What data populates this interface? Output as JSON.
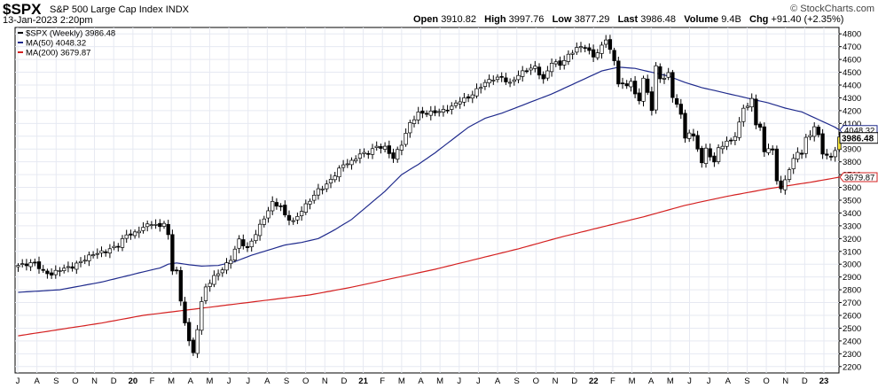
{
  "header": {
    "symbol": "$SPX",
    "name": "S&P 500 Large Cap Index",
    "exchange": "INDX",
    "date": "13-Jan-2023 2:20pm",
    "brand": "© StockCharts.com",
    "ohlc": {
      "open_label": "Open",
      "open": "3910.82",
      "high_label": "High",
      "high": "3997.76",
      "low_label": "Low",
      "low": "3877.29",
      "last_label": "Last",
      "last": "3986.48",
      "volume_label": "Volume",
      "volume": "9.4B",
      "chg_label": "Chg",
      "chg": "+91.40 (+2.35%)"
    }
  },
  "legend": [
    {
      "label": "$SPX (Weekly) 3986.48",
      "color": "#000000"
    },
    {
      "label": "MA(50) 4048.32",
      "color": "#1f2a8c"
    },
    {
      "label": "MA(200) 3679.87",
      "color": "#d42020"
    }
  ],
  "chart_data": {
    "type": "candlestick",
    "title": "$SPX S&P 500 Large Cap Index INDX",
    "timeframe": "Weekly",
    "ylim": [
      2150,
      4850
    ],
    "y_ticks": [
      2200,
      2300,
      2400,
      2500,
      2600,
      2700,
      2800,
      2900,
      3000,
      3100,
      3200,
      3300,
      3400,
      3500,
      3600,
      3700,
      3800,
      3900,
      4000,
      4100,
      4200,
      4300,
      4400,
      4500,
      4600,
      4700,
      4800
    ],
    "x_labels": [
      "J",
      "A",
      "S",
      "O",
      "N",
      "D",
      "20",
      "F",
      "M",
      "A",
      "M",
      "J",
      "J",
      "A",
      "S",
      "O",
      "N",
      "D",
      "21",
      "F",
      "M",
      "A",
      "M",
      "J",
      "J",
      "A",
      "S",
      "O",
      "N",
      "D",
      "22",
      "F",
      "M",
      "A",
      "M",
      "J",
      "J",
      "A",
      "S",
      "O",
      "N",
      "D",
      "23"
    ],
    "x_bold": [
      "20",
      "21",
      "22",
      "23"
    ],
    "price_labels": [
      {
        "value": 4048.32,
        "text": "4048.32",
        "style": "ma50"
      },
      {
        "value": 3986.48,
        "text": "3986.48",
        "style": "last"
      },
      {
        "value": 3679.87,
        "text": "3679.87",
        "style": "ma200"
      }
    ],
    "close_anchors": [
      [
        0,
        2990
      ],
      [
        4,
        3010
      ],
      [
        6,
        2940
      ],
      [
        8,
        2920
      ],
      [
        10,
        2960
      ],
      [
        13,
        2980
      ],
      [
        15,
        3020
      ],
      [
        18,
        3080
      ],
      [
        21,
        3100
      ],
      [
        24,
        3150
      ],
      [
        26,
        3230
      ],
      [
        28,
        3240
      ],
      [
        30,
        3290
      ],
      [
        32,
        3320
      ],
      [
        34,
        3290
      ],
      [
        35,
        3330
      ],
      [
        36,
        3220
      ],
      [
        37,
        2950
      ],
      [
        38,
        2960
      ],
      [
        39,
        2700
      ],
      [
        40,
        2550
      ],
      [
        41,
        2400
      ],
      [
        42,
        2300
      ],
      [
        43,
        2500
      ],
      [
        44,
        2700
      ],
      [
        45,
        2820
      ],
      [
        47,
        2900
      ],
      [
        49,
        2960
      ],
      [
        51,
        3040
      ],
      [
        53,
        3190
      ],
      [
        55,
        3120
      ],
      [
        57,
        3240
      ],
      [
        59,
        3360
      ],
      [
        61,
        3480
      ],
      [
        63,
        3450
      ],
      [
        64,
        3380
      ],
      [
        66,
        3330
      ],
      [
        68,
        3420
      ],
      [
        70,
        3500
      ],
      [
        72,
        3580
      ],
      [
        74,
        3620
      ],
      [
        76,
        3700
      ],
      [
        78,
        3780
      ],
      [
        80,
        3800
      ],
      [
        82,
        3860
      ],
      [
        84,
        3870
      ],
      [
        86,
        3920
      ],
      [
        88,
        3910
      ],
      [
        90,
        3830
      ],
      [
        92,
        3940
      ],
      [
        94,
        4100
      ],
      [
        96,
        4180
      ],
      [
        98,
        4180
      ],
      [
        100,
        4190
      ],
      [
        102,
        4200
      ],
      [
        104,
        4230
      ],
      [
        106,
        4280
      ],
      [
        108,
        4300
      ],
      [
        110,
        4360
      ],
      [
        112,
        4420
      ],
      [
        114,
        4450
      ],
      [
        116,
        4460
      ],
      [
        118,
        4410
      ],
      [
        120,
        4480
      ],
      [
        122,
        4520
      ],
      [
        124,
        4540
      ],
      [
        126,
        4440
      ],
      [
        128,
        4580
      ],
      [
        130,
        4560
      ],
      [
        132,
        4630
      ],
      [
        134,
        4690
      ],
      [
        136,
        4700
      ],
      [
        138,
        4620
      ],
      [
        140,
        4700
      ],
      [
        141,
        4760
      ],
      [
        142,
        4680
      ],
      [
        143,
        4580
      ],
      [
        144,
        4420
      ],
      [
        146,
        4390
      ],
      [
        147,
        4440
      ],
      [
        148,
        4320
      ],
      [
        149,
        4280
      ],
      [
        150,
        4460
      ],
      [
        151,
        4330
      ],
      [
        152,
        4210
      ],
      [
        153,
        4550
      ],
      [
        154,
        4440
      ],
      [
        156,
        4490
      ],
      [
        157,
        4300
      ],
      [
        158,
        4260
      ],
      [
        159,
        4160
      ],
      [
        160,
        3990
      ],
      [
        161,
        4030
      ],
      [
        162,
        3990
      ],
      [
        163,
        3910
      ],
      [
        164,
        3790
      ],
      [
        165,
        3900
      ],
      [
        166,
        3850
      ],
      [
        167,
        3790
      ],
      [
        168,
        3910
      ],
      [
        170,
        3950
      ],
      [
        172,
        4000
      ],
      [
        173,
        4100
      ],
      [
        174,
        4230
      ],
      [
        175,
        4230
      ],
      [
        176,
        4290
      ],
      [
        177,
        4100
      ],
      [
        178,
        4060
      ],
      [
        179,
        3880
      ],
      [
        180,
        3910
      ],
      [
        181,
        3880
      ],
      [
        182,
        3660
      ],
      [
        183,
        3590
      ],
      [
        184,
        3650
      ],
      [
        185,
        3750
      ],
      [
        186,
        3820
      ],
      [
        187,
        3870
      ],
      [
        188,
        3870
      ],
      [
        189,
        3980
      ],
      [
        190,
        4010
      ],
      [
        191,
        4080
      ],
      [
        192,
        4000
      ],
      [
        193,
        3870
      ],
      [
        194,
        3850
      ],
      [
        195,
        3830
      ],
      [
        196,
        3900
      ],
      [
        197,
        3986
      ]
    ],
    "ma50_anchors": [
      [
        0,
        2780
      ],
      [
        10,
        2800
      ],
      [
        20,
        2860
      ],
      [
        30,
        2940
      ],
      [
        34,
        2970
      ],
      [
        36,
        3000
      ],
      [
        38,
        3010
      ],
      [
        41,
        2995
      ],
      [
        44,
        2985
      ],
      [
        48,
        2990
      ],
      [
        52,
        3020
      ],
      [
        56,
        3070
      ],
      [
        60,
        3110
      ],
      [
        64,
        3150
      ],
      [
        68,
        3170
      ],
      [
        72,
        3200
      ],
      [
        76,
        3270
      ],
      [
        80,
        3350
      ],
      [
        84,
        3460
      ],
      [
        88,
        3570
      ],
      [
        92,
        3700
      ],
      [
        96,
        3780
      ],
      [
        100,
        3870
      ],
      [
        104,
        3970
      ],
      [
        108,
        4070
      ],
      [
        112,
        4140
      ],
      [
        116,
        4180
      ],
      [
        120,
        4230
      ],
      [
        124,
        4280
      ],
      [
        128,
        4330
      ],
      [
        132,
        4390
      ],
      [
        136,
        4450
      ],
      [
        140,
        4510
      ],
      [
        144,
        4540
      ],
      [
        148,
        4530
      ],
      [
        152,
        4500
      ],
      [
        156,
        4470
      ],
      [
        160,
        4420
      ],
      [
        164,
        4380
      ],
      [
        168,
        4350
      ],
      [
        172,
        4320
      ],
      [
        176,
        4290
      ],
      [
        180,
        4260
      ],
      [
        184,
        4220
      ],
      [
        188,
        4190
      ],
      [
        192,
        4130
      ],
      [
        196,
        4070
      ],
      [
        197,
        4048
      ]
    ],
    "ma200_anchors": [
      [
        0,
        2440
      ],
      [
        10,
        2490
      ],
      [
        20,
        2540
      ],
      [
        30,
        2600
      ],
      [
        40,
        2640
      ],
      [
        50,
        2680
      ],
      [
        60,
        2720
      ],
      [
        70,
        2760
      ],
      [
        80,
        2820
      ],
      [
        90,
        2890
      ],
      [
        100,
        2960
      ],
      [
        110,
        3040
      ],
      [
        120,
        3120
      ],
      [
        130,
        3210
      ],
      [
        140,
        3290
      ],
      [
        150,
        3370
      ],
      [
        160,
        3460
      ],
      [
        170,
        3530
      ],
      [
        180,
        3590
      ],
      [
        185,
        3615
      ],
      [
        190,
        3640
      ],
      [
        197,
        3680
      ]
    ]
  }
}
